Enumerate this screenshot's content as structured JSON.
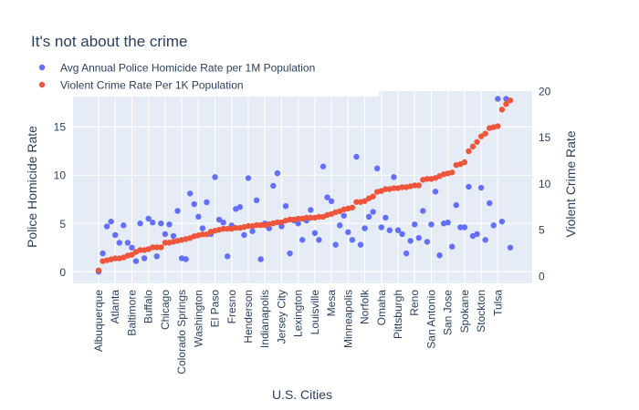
{
  "chart_data": {
    "type": "scatter",
    "title": "It's not about the crime",
    "xlabel": "U.S. Cities",
    "ylabel": "Police Homicide Rate",
    "y2label": "Violent Crime Rate",
    "ylim": [
      -1.2,
      18.7
    ],
    "y2lim": [
      -0.8,
      20
    ],
    "yticks": [
      0,
      5,
      10,
      15
    ],
    "y2ticks": [
      0,
      5,
      10,
      15,
      20
    ],
    "grid": true,
    "legend_position": "top-left",
    "x_tick_labels": [
      "Albuquerque",
      "Atlanta",
      "Baltimore",
      "Buffalo",
      "Chicago",
      "Colorado Springs",
      "Washington",
      "El Paso",
      "Fresno",
      "Henderson",
      "Indianapolis",
      "Jersey City",
      "Lexington",
      "Louisville",
      "Mesa",
      "Minneapolis",
      "Norfolk",
      "Omaha",
      "Pittsburgh",
      "Reno",
      "San Antonio",
      "San Jose",
      "Spokane",
      "Stockton",
      "Tulsa"
    ],
    "x_tick_every": 4,
    "series": [
      {
        "name": "Avg Annual Police Homicide Rate per 1M Population",
        "color": "#636efa",
        "axis": "y",
        "values": [
          0.0,
          1.9,
          4.7,
          5.2,
          3.8,
          3.0,
          4.8,
          3.0,
          2.5,
          1.1,
          5.0,
          1.4,
          5.5,
          5.1,
          1.6,
          5.0,
          3.9,
          4.9,
          3.7,
          6.3,
          1.4,
          1.3,
          8.1,
          7.0,
          5.7,
          4.5,
          7.2,
          3.9,
          9.8,
          5.4,
          5.1,
          1.6,
          4.8,
          6.5,
          6.7,
          3.8,
          9.7,
          4.2,
          7.4,
          1.3,
          5.0,
          4.5,
          8.9,
          10.2,
          4.7,
          6.8,
          1.9,
          5.3,
          5.0,
          3.3,
          5.3,
          6.4,
          4.0,
          3.3,
          10.9,
          7.7,
          7.3,
          2.8,
          4.8,
          5.8,
          4.1,
          3.3,
          11.9,
          2.8,
          4.5,
          5.7,
          6.2,
          10.7,
          4.6,
          5.6,
          4.3,
          9.8,
          4.3,
          3.9,
          1.9,
          3.2,
          4.9,
          3.5,
          6.3,
          3.1,
          4.9,
          8.3,
          1.7,
          5.0,
          5.1,
          2.6,
          6.9,
          4.6,
          4.6,
          8.8,
          3.7,
          3.9,
          8.7,
          3.3,
          7.1,
          4.8,
          17.9,
          5.2,
          17.9,
          2.5
        ]
      },
      {
        "name": "Violent Crime Rate Per 1K Population",
        "color": "#ef553b",
        "axis": "y2",
        "values": [
          0.6,
          1.6,
          1.7,
          1.8,
          1.9,
          1.9,
          2.0,
          2.2,
          2.3,
          2.6,
          2.8,
          2.8,
          2.9,
          3.1,
          3.1,
          3.1,
          3.6,
          3.6,
          3.7,
          3.8,
          3.9,
          4.0,
          4.1,
          4.3,
          4.4,
          4.5,
          4.5,
          4.8,
          4.9,
          5.0,
          5.1,
          5.1,
          5.1,
          5.2,
          5.2,
          5.3,
          5.4,
          5.4,
          5.5,
          5.5,
          5.5,
          5.6,
          5.7,
          5.8,
          5.8,
          6.0,
          6.1,
          6.1,
          6.2,
          6.2,
          6.3,
          6.3,
          6.3,
          6.4,
          6.4,
          6.6,
          6.7,
          6.9,
          7.0,
          7.2,
          7.3,
          7.4,
          8.0,
          8.0,
          8.1,
          8.4,
          8.6,
          9.1,
          9.2,
          9.4,
          9.4,
          9.5,
          9.5,
          9.6,
          9.6,
          9.7,
          9.8,
          9.8,
          10.4,
          10.5,
          10.5,
          10.6,
          10.8,
          11.0,
          11.1,
          11.2,
          12.0,
          12.1,
          12.3,
          13.5,
          14.0,
          14.5,
          15.1,
          15.4,
          16.0,
          16.1,
          16.2,
          18.0,
          18.6,
          19.0
        ]
      }
    ]
  }
}
